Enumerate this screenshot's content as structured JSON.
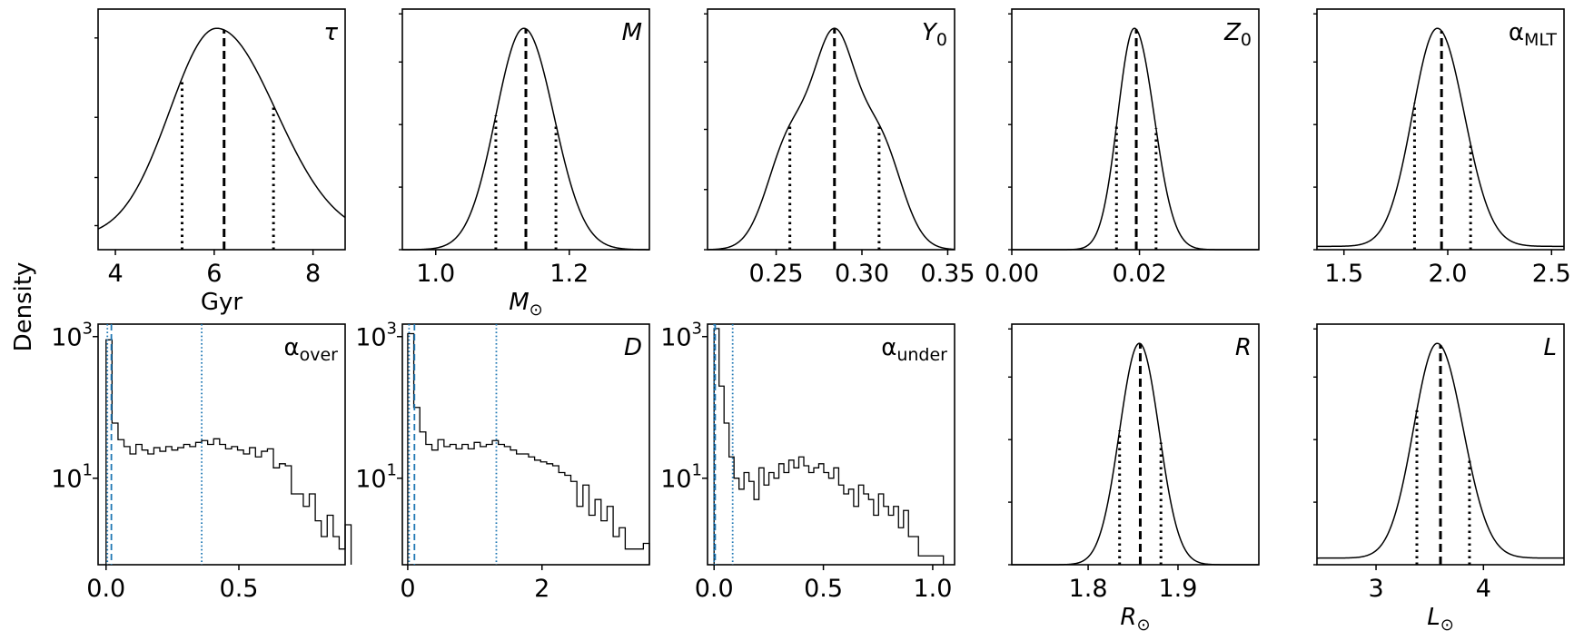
{
  "figure": {
    "ylabel": "Density"
  },
  "chart_data": [
    {
      "type": "line",
      "id": "tau",
      "label": "τ",
      "xlabel": "Gyr",
      "xlim": [
        3.65,
        8.65
      ],
      "yscale": "linear",
      "xticks": [
        4,
        6,
        8
      ],
      "tick_labels": [
        "4",
        "6",
        "8"
      ],
      "kde": {
        "mode": 6.05,
        "sigma_left": 0.95,
        "sigma_right": 1.2,
        "offset": 0.055
      },
      "median": 6.2,
      "quantiles": [
        5.35,
        7.2
      ],
      "left_ticks": [
        0.1,
        0.3,
        0.55,
        0.88
      ]
    },
    {
      "type": "line",
      "id": "M",
      "label": "M",
      "xlabel": "M_sun",
      "xlim": [
        0.95,
        1.32
      ],
      "yscale": "linear",
      "xticks": [
        1.0,
        1.2
      ],
      "tick_labels": [
        "1.0",
        "1.2"
      ],
      "kde": {
        "mode": 1.132,
        "sigma_left": 0.042,
        "sigma_right": 0.045,
        "offset": 0.0
      },
      "median": 1.135,
      "quantiles": [
        1.09,
        1.18
      ],
      "left_ticks": [
        0.0,
        0.26,
        0.52,
        0.78,
        0.98
      ]
    },
    {
      "type": "line",
      "id": "Y0",
      "label": "Y0",
      "xlabel": "",
      "xlim": [
        0.21,
        0.354
      ],
      "yscale": "linear",
      "xticks": [
        0.25,
        0.3,
        0.35
      ],
      "tick_labels": [
        "0.25",
        "0.30",
        "0.35"
      ],
      "kde_mix": [
        {
          "mu": 0.284,
          "sigma": 0.012,
          "w": 0.63
        },
        {
          "mu": 0.258,
          "sigma": 0.013,
          "w": 0.35
        },
        {
          "mu": 0.31,
          "sigma": 0.013,
          "w": 0.35
        }
      ],
      "median": 0.284,
      "quantiles": [
        0.258,
        0.31
      ],
      "left_ticks": [
        0.0,
        0.25,
        0.5,
        0.78,
        0.98
      ]
    },
    {
      "type": "line",
      "id": "Z0",
      "label": "Z0",
      "xlabel": "",
      "xlim": [
        0.0,
        0.0387
      ],
      "yscale": "linear",
      "xticks": [
        0.0,
        0.02
      ],
      "tick_labels": [
        "0.00",
        "0.02"
      ],
      "kde": {
        "mode": 0.0192,
        "sigma_left": 0.0026,
        "sigma_right": 0.0031,
        "offset": 0.0
      },
      "median": 0.0195,
      "quantiles": [
        0.0164,
        0.0226
      ],
      "left_ticks": [
        0.0,
        0.26,
        0.52,
        0.78,
        0.98
      ]
    },
    {
      "type": "line",
      "id": "alpha_MLT",
      "label": "αMLT",
      "xlabel": "",
      "xlim": [
        1.37,
        2.56
      ],
      "yscale": "linear",
      "xticks": [
        1.5,
        2.0,
        2.5
      ],
      "tick_labels": [
        "1.5",
        "2.0",
        "2.5"
      ],
      "kde": {
        "mode": 1.95,
        "sigma_left": 0.12,
        "sigma_right": 0.13,
        "offset": 0.015
      },
      "median": 1.97,
      "quantiles": [
        1.84,
        2.11
      ],
      "left_ticks": [
        0.0,
        0.26,
        0.52,
        0.78,
        0.98
      ]
    },
    {
      "type": "bar",
      "id": "alpha_over",
      "label": "αover",
      "xlabel": "",
      "xlim": [
        -0.03,
        0.9
      ],
      "yscale": "log",
      "ylim": [
        0.6,
        1500
      ],
      "xticks": [
        0.0,
        0.5
      ],
      "tick_labels": [
        "0.0",
        "0.5"
      ],
      "yticks": [
        1000,
        10
      ],
      "ytick_base": "10",
      "ytick_exps": [
        "3",
        "1"
      ],
      "bin_start": 0.0,
      "bin_width": 0.0225,
      "counts": [
        900,
        60,
        35,
        28,
        22,
        30,
        25,
        22,
        27,
        24,
        28,
        25,
        27,
        30,
        28,
        32,
        34,
        30,
        36,
        30,
        26,
        28,
        25,
        22,
        27,
        20,
        24,
        26,
        14,
        16,
        15,
        6,
        6,
        4,
        6,
        2.5,
        1.5,
        3,
        1.5,
        1,
        2.2
      ],
      "median": 0.02,
      "quantiles": [
        0.005,
        0.36
      ]
    },
    {
      "type": "bar",
      "id": "D",
      "label": "D",
      "xlabel": "",
      "xlim": [
        -0.08,
        3.6
      ],
      "yscale": "log",
      "ylim": [
        0.6,
        1500
      ],
      "xticks": [
        0,
        2
      ],
      "tick_labels": [
        "0",
        "2"
      ],
      "yticks": [
        1000,
        10
      ],
      "ytick_base": "10",
      "ytick_exps": [
        "3",
        "1"
      ],
      "bin_start": 0.0,
      "bin_width": 0.09,
      "counts": [
        1100,
        100,
        45,
        30,
        25,
        35,
        28,
        30,
        26,
        30,
        26,
        32,
        28,
        30,
        34,
        30,
        28,
        25,
        22,
        22,
        20,
        18,
        17,
        16,
        15,
        12,
        11,
        9,
        4,
        8,
        3,
        5,
        2.5,
        4,
        1.5,
        2,
        1,
        1,
        1,
        1.2
      ],
      "median": 0.1,
      "quantiles": [
        0.02,
        1.32
      ]
    },
    {
      "type": "bar",
      "id": "alpha_under",
      "label": "αunder",
      "xlabel": "",
      "xlim": [
        -0.03,
        1.1
      ],
      "yscale": "log",
      "ylim": [
        0.6,
        1500
      ],
      "xticks": [
        0.0,
        0.5,
        1.0
      ],
      "tick_labels": [
        "0.0",
        "0.5",
        "1.0"
      ],
      "yticks": [
        1000,
        10
      ],
      "ytick_base": "10",
      "ytick_exps": [
        "3",
        "1"
      ],
      "bin_start": 0.0,
      "bin_width": 0.0228,
      "counts": [
        1300,
        200,
        60,
        20,
        10,
        7,
        12,
        9,
        5,
        14,
        8,
        12,
        10,
        16,
        12,
        18,
        14,
        20,
        15,
        12,
        14,
        16,
        12,
        10,
        14,
        8,
        6,
        7,
        4,
        8,
        6,
        5,
        3,
        6,
        4,
        3,
        4,
        2,
        3.5,
        1.5,
        1.5,
        0.8,
        0.8,
        0.8,
        0.8,
        0.8
      ],
      "median": 0.005,
      "quantiles": [
        0.0,
        0.085
      ]
    },
    {
      "type": "line",
      "id": "R",
      "label": "R",
      "xlabel": "R_sun",
      "xlim": [
        1.715,
        1.99
      ],
      "yscale": "linear",
      "xticks": [
        1.8,
        1.9
      ],
      "tick_labels": [
        "1.8",
        "1.9"
      ],
      "kde": {
        "mode": 1.857,
        "sigma_left": 0.022,
        "sigma_right": 0.022,
        "offset": 0.0
      },
      "median": 1.858,
      "quantiles": [
        1.835,
        1.881
      ],
      "left_ticks": [
        0.0,
        0.26,
        0.52,
        0.78,
        0.98
      ]
    },
    {
      "type": "line",
      "id": "L",
      "label": "L",
      "xlabel": "L_sun",
      "xlim": [
        2.45,
        4.75
      ],
      "yscale": "linear",
      "xticks": [
        3,
        4
      ],
      "tick_labels": [
        "3",
        "4"
      ],
      "kde": {
        "mode": 3.57,
        "sigma_left": 0.22,
        "sigma_right": 0.24,
        "offset": 0.03
      },
      "median": 3.6,
      "quantiles": [
        3.38,
        3.87
      ],
      "left_ticks": [
        0.0,
        0.26,
        0.52,
        0.78,
        0.98
      ]
    }
  ]
}
